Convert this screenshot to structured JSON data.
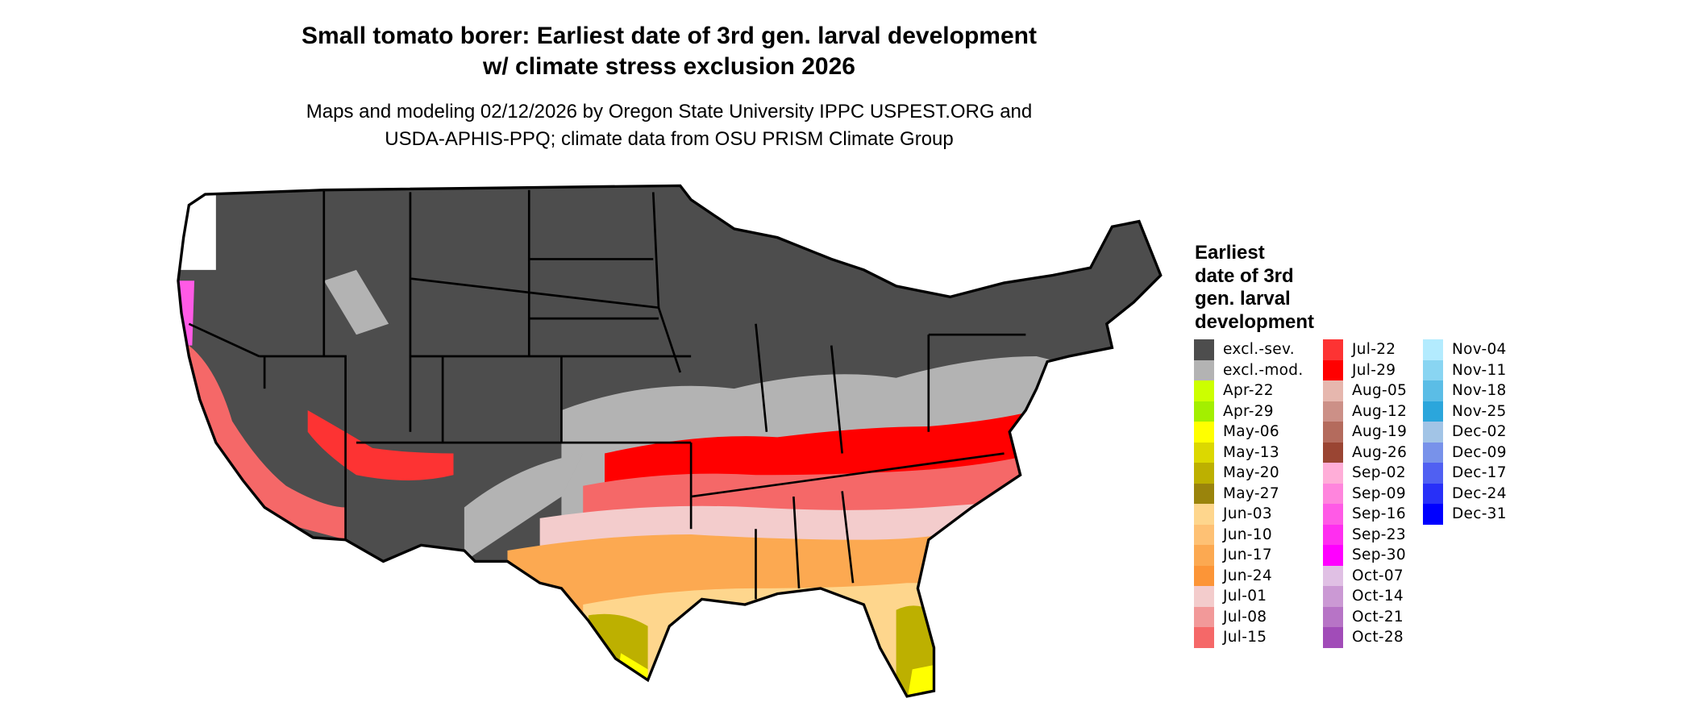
{
  "title": {
    "line1": "Small tomato borer: Earliest date of 3rd gen. larval development",
    "line2": "w/ climate stress exclusion 2026"
  },
  "subtitle": {
    "line1": "Maps and modeling 02/12/2026 by Oregon State University IPPC USPEST.ORG and",
    "line2": "USDA-APHIS-PPQ; climate data from OSU PRISM Climate Group"
  },
  "legend": {
    "title": [
      "Earliest",
      "date of 3rd",
      "gen. larval",
      "development"
    ],
    "columns": [
      [
        {
          "label": "excl.-sev.",
          "color": "#4d4d4d"
        },
        {
          "label": "excl.-mod.",
          "color": "#b3b3b3"
        },
        {
          "label": "Apr-22",
          "color": "#ccff00"
        },
        {
          "label": "Apr-29",
          "color": "#a3ef00"
        },
        {
          "label": "May-06",
          "color": "#ffff00"
        },
        {
          "label": "May-13",
          "color": "#dcd800"
        },
        {
          "label": "May-20",
          "color": "#bdb000"
        },
        {
          "label": "May-27",
          "color": "#9a840c"
        },
        {
          "label": "Jun-03",
          "color": "#fed68d"
        },
        {
          "label": "Jun-10",
          "color": "#fec174"
        },
        {
          "label": "Jun-17",
          "color": "#fca951"
        },
        {
          "label": "Jun-24",
          "color": "#fc9537"
        },
        {
          "label": "Jul-01",
          "color": "#f3cccc"
        },
        {
          "label": "Jul-08",
          "color": "#f29999"
        },
        {
          "label": "Jul-15",
          "color": "#f56868"
        }
      ],
      [
        {
          "label": "Jul-22",
          "color": "#fd3333"
        },
        {
          "label": "Jul-29",
          "color": "#ff0000"
        },
        {
          "label": "Aug-05",
          "color": "#e6b7ae"
        },
        {
          "label": "Aug-12",
          "color": "#cc9087"
        },
        {
          "label": "Aug-19",
          "color": "#b46b5d"
        },
        {
          "label": "Aug-26",
          "color": "#9a4533"
        },
        {
          "label": "Sep-02",
          "color": "#ffaed8"
        },
        {
          "label": "Sep-09",
          "color": "#ff85dd"
        },
        {
          "label": "Sep-16",
          "color": "#ff5ae6"
        },
        {
          "label": "Sep-23",
          "color": "#ff2ef0"
        },
        {
          "label": "Sep-30",
          "color": "#ff00ff"
        },
        {
          "label": "Oct-07",
          "color": "#e0c0e4"
        },
        {
          "label": "Oct-14",
          "color": "#cb99d4"
        },
        {
          "label": "Oct-21",
          "color": "#b774c6"
        },
        {
          "label": "Oct-28",
          "color": "#a14cb8"
        }
      ],
      [
        {
          "label": "Nov-04",
          "color": "#b3ebfe"
        },
        {
          "label": "Nov-11",
          "color": "#89d5f2"
        },
        {
          "label": "Nov-18",
          "color": "#5bbde6"
        },
        {
          "label": "Nov-25",
          "color": "#2ba6dc"
        },
        {
          "label": "Dec-02",
          "color": "#a2c4e6"
        },
        {
          "label": "Dec-09",
          "color": "#7892ea"
        },
        {
          "label": "Dec-17",
          "color": "#5060f2"
        },
        {
          "label": "Dec-24",
          "color": "#2830f8"
        },
        {
          "label": "Dec-31",
          "color": "#0000ff"
        }
      ]
    ]
  }
}
